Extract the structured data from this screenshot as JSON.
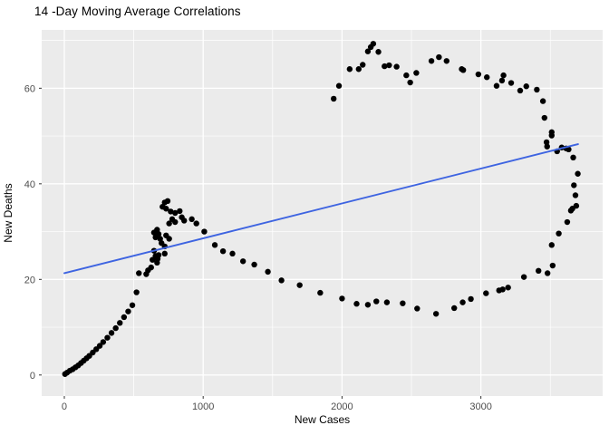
{
  "style": {
    "figure_bg": "#FFFFFF",
    "panel_bg": "#EBEBEB",
    "grid_color": "#FFFFFF",
    "point_color": "#000000",
    "trend_line_color": "#3E64E1",
    "tick_mark_color": "#333333",
    "tick_label_color": "#4D4D4D",
    "axis_title_color": "#000000",
    "title_color": "#000000"
  },
  "chart_data": {
    "type": "scatter",
    "title": "14 -Day Moving Average Correlations",
    "xlabel": "New Cases",
    "ylabel": "New Deaths",
    "xlim": [
      -163,
      3877
    ],
    "ylim": [
      -4.4,
      72.2
    ],
    "x_major_ticks": [
      0,
      1000,
      2000,
      3000
    ],
    "y_major_ticks": [
      0,
      20,
      40,
      60
    ],
    "x_minor_gridlines": [
      500,
      1500,
      2500,
      3500
    ],
    "y_minor_gridlines": [
      10,
      30,
      50,
      70
    ],
    "grid": "on",
    "legend": "none",
    "series": [
      {
        "name": "moving-average-points",
        "type": "scatter",
        "color": "#000000",
        "points": [
          [
            5,
            0.2
          ],
          [
            20,
            0.5
          ],
          [
            40,
            0.9
          ],
          [
            60,
            1.2
          ],
          [
            80,
            1.6
          ],
          [
            100,
            2.0
          ],
          [
            120,
            2.5
          ],
          [
            140,
            3.0
          ],
          [
            160,
            3.5
          ],
          [
            180,
            4.0
          ],
          [
            205,
            4.7
          ],
          [
            230,
            5.4
          ],
          [
            255,
            6.1
          ],
          [
            280,
            6.9
          ],
          [
            310,
            7.8
          ],
          [
            340,
            8.8
          ],
          [
            370,
            9.8
          ],
          [
            400,
            10.9
          ],
          [
            430,
            12.1
          ],
          [
            460,
            13.3
          ],
          [
            490,
            14.6
          ],
          [
            520,
            17.3
          ],
          [
            590,
            21.1
          ],
          [
            625,
            22.5
          ],
          [
            537,
            21.3
          ],
          [
            603,
            21.9
          ],
          [
            635,
            24.1
          ],
          [
            646,
            26.0
          ],
          [
            646,
            29.8
          ],
          [
            657,
            24.9
          ],
          [
            657,
            28.8
          ],
          [
            668,
            23.5
          ],
          [
            668,
            30.4
          ],
          [
            672,
            24.3
          ],
          [
            679,
            25.1
          ],
          [
            679,
            29.5
          ],
          [
            690,
            28.5
          ],
          [
            700,
            27.6
          ],
          [
            707,
            35.2
          ],
          [
            723,
            25.4
          ],
          [
            723,
            26.9
          ],
          [
            723,
            36.1
          ],
          [
            733,
            29.2
          ],
          [
            733,
            34.8
          ],
          [
            744,
            36.4
          ],
          [
            755,
            28.5
          ],
          [
            755,
            31.7
          ],
          [
            766,
            34.2
          ],
          [
            777,
            32.6
          ],
          [
            798,
            32.0
          ],
          [
            798,
            33.9
          ],
          [
            831,
            34.3
          ],
          [
            846,
            33.0
          ],
          [
            863,
            32.3
          ],
          [
            918,
            32.6
          ],
          [
            951,
            31.7
          ],
          [
            1008,
            30.0
          ],
          [
            1084,
            27.2
          ],
          [
            1143,
            25.9
          ],
          [
            1211,
            25.4
          ],
          [
            1287,
            23.8
          ],
          [
            1368,
            23.1
          ],
          [
            1466,
            21.6
          ],
          [
            1564,
            19.8
          ],
          [
            1695,
            18.8
          ],
          [
            1843,
            17.2
          ],
          [
            2000,
            16.0
          ],
          [
            2105,
            14.9
          ],
          [
            2186,
            14.7
          ],
          [
            2247,
            15.4
          ],
          [
            2323,
            15.2
          ],
          [
            2437,
            15.0
          ],
          [
            2541,
            13.9
          ],
          [
            2677,
            12.8
          ],
          [
            2808,
            14.0
          ],
          [
            2869,
            15.2
          ],
          [
            2928,
            15.9
          ],
          [
            3037,
            17.1
          ],
          [
            3131,
            17.7
          ],
          [
            3157,
            17.9
          ],
          [
            3196,
            18.3
          ],
          [
            3310,
            20.5
          ],
          [
            3415,
            21.8
          ],
          [
            3480,
            21.3
          ],
          [
            3517,
            22.9
          ],
          [
            3510,
            27.2
          ],
          [
            3561,
            29.6
          ],
          [
            3622,
            32.0
          ],
          [
            3648,
            34.4
          ],
          [
            3659,
            34.8
          ],
          [
            3687,
            35.4
          ],
          [
            3681,
            37.6
          ],
          [
            3670,
            39.7
          ],
          [
            3698,
            42.1
          ],
          [
            3665,
            45.5
          ],
          [
            3632,
            47.2
          ],
          [
            3614,
            47.4
          ],
          [
            3582,
            47.6
          ],
          [
            3549,
            46.8
          ],
          [
            3477,
            47.8
          ],
          [
            3473,
            48.7
          ],
          [
            3510,
            50.1
          ],
          [
            3510,
            50.8
          ],
          [
            3458,
            53.8
          ],
          [
            3447,
            57.3
          ],
          [
            3403,
            59.7
          ],
          [
            3327,
            60.4
          ],
          [
            3283,
            59.5
          ],
          [
            3218,
            61.1
          ],
          [
            3163,
            62.7
          ],
          [
            3152,
            61.6
          ],
          [
            3113,
            60.5
          ],
          [
            3043,
            62.3
          ],
          [
            2982,
            62.9
          ],
          [
            2873,
            63.8
          ],
          [
            2862,
            64.0
          ],
          [
            2753,
            65.7
          ],
          [
            2698,
            66.5
          ],
          [
            2644,
            65.7
          ],
          [
            2535,
            63.2
          ],
          [
            2491,
            61.2
          ],
          [
            2463,
            62.7
          ],
          [
            2393,
            64.5
          ],
          [
            2339,
            64.8
          ],
          [
            2306,
            64.6
          ],
          [
            2262,
            67.6
          ],
          [
            2225,
            69.3
          ],
          [
            2207,
            68.6
          ],
          [
            2186,
            67.7
          ],
          [
            2149,
            64.9
          ],
          [
            2120,
            64.0
          ],
          [
            2055,
            64.0
          ],
          [
            1978,
            60.5
          ],
          [
            1940,
            57.8
          ]
        ]
      },
      {
        "name": "trend-line",
        "type": "line",
        "color": "#3E64E1",
        "points": [
          [
            0,
            21.3
          ],
          [
            3700,
            48.3
          ]
        ]
      }
    ]
  }
}
